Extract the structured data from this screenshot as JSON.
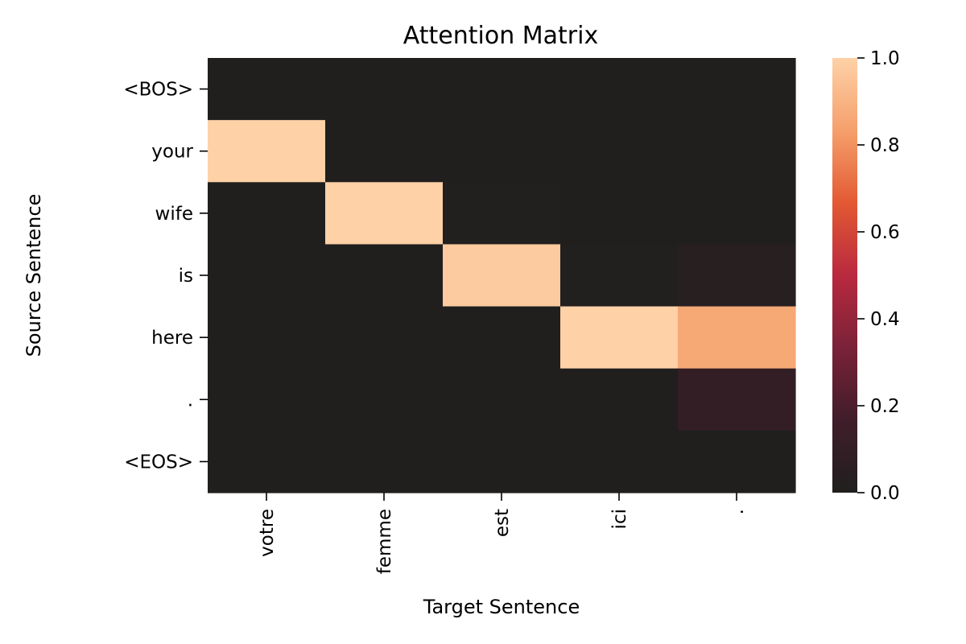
{
  "chart_data": {
    "type": "heatmap",
    "title": "Attention Matrix",
    "xlabel": "Target Sentence",
    "ylabel": "Source Sentence",
    "x_categories": [
      "votre",
      "femme",
      "est",
      "ici",
      "."
    ],
    "y_categories": [
      "<BOS>",
      "your",
      "wife",
      "is",
      "here",
      ".",
      "<EOS>"
    ],
    "values": [
      [
        0.0,
        0.0,
        0.0,
        0.0,
        0.0
      ],
      [
        1.0,
        0.0,
        0.0,
        0.0,
        0.0
      ],
      [
        0.0,
        1.0,
        0.01,
        0.0,
        0.0
      ],
      [
        0.0,
        0.0,
        0.98,
        0.01,
        0.04
      ],
      [
        0.0,
        0.0,
        0.0,
        1.0,
        0.86
      ],
      [
        0.0,
        0.0,
        0.0,
        0.0,
        0.1
      ],
      [
        0.0,
        0.0,
        0.0,
        0.0,
        0.0
      ]
    ],
    "colorbar": {
      "min": 0.0,
      "max": 1.0,
      "ticks": [
        "0.0",
        "0.2",
        "0.4",
        "0.6",
        "0.8",
        "1.0"
      ],
      "colormap": "rocket-style",
      "colors": [
        "#201f1e",
        "#401d2a",
        "#7a2238",
        "#b9293f",
        "#e35933",
        "#f5a06c",
        "#fed1a7"
      ]
    },
    "grid": false
  }
}
